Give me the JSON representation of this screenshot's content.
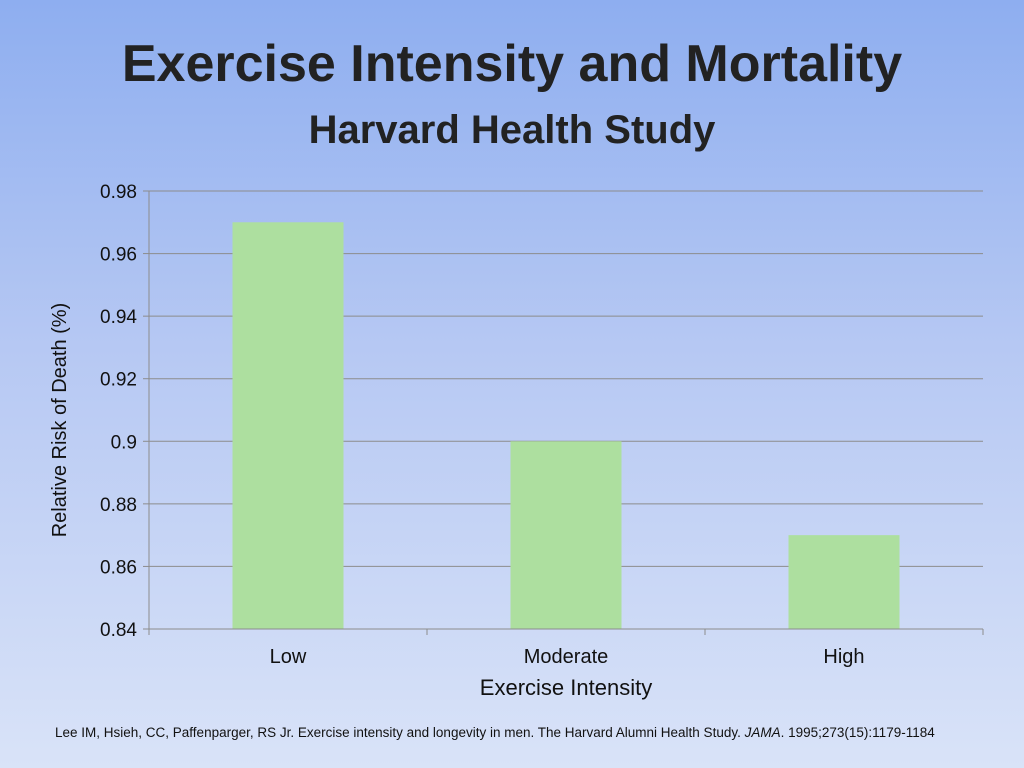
{
  "title": "Exercise Intensity and Mortality",
  "subtitle": "Harvard Health Study",
  "chart_data": {
    "type": "bar",
    "categories": [
      "Low",
      "Moderate",
      "High"
    ],
    "values": [
      0.97,
      0.9,
      0.87
    ],
    "xlabel": "Exercise Intensity",
    "ylabel": "Relative Risk of Death (%)",
    "ylim": [
      0.84,
      0.98
    ],
    "yticks": [
      "0.98",
      "0.96",
      "0.94",
      "0.92",
      "0.9",
      "0.88",
      "0.86",
      "0.84"
    ],
    "grid": true,
    "legend": "none",
    "bar_color": "#addf9f"
  },
  "citation": {
    "text": "Lee IM, Hsieh, CC, Paffenparger, RS Jr. Exercise intensity and longevity in men. The Harvard Alumni Health Study. ",
    "journal": "JAMA",
    "details": ". 1995;273(15):1179-1184"
  }
}
